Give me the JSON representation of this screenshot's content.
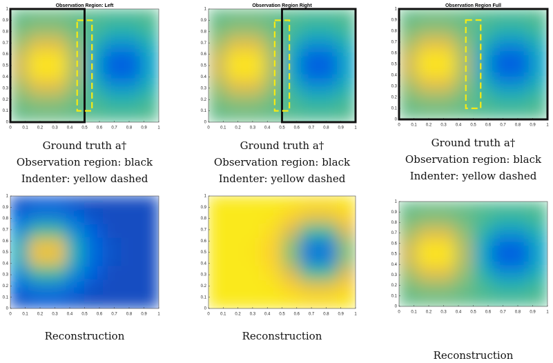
{
  "chart_data": [
    {
      "type": "heatmap",
      "title": "Observation Region: Left",
      "colormap": "parula",
      "caption": [
        "Ground truth a†",
        "Observation region: black",
        "Indenter: yellow dashed"
      ],
      "xlim": [
        0,
        1
      ],
      "ylim": [
        0,
        1
      ],
      "xticks": [
        0,
        0.1,
        0.2,
        0.3,
        0.4,
        0.5,
        0.6,
        0.7,
        0.8,
        0.9,
        1
      ],
      "yticks": [
        0,
        0.1,
        0.2,
        0.3,
        0.4,
        0.5,
        0.6,
        0.7,
        0.8,
        0.9,
        1
      ],
      "observation_region": {
        "x": [
          0,
          0.5
        ],
        "y": [
          0,
          1
        ]
      },
      "indenter": {
        "x": [
          0.45,
          0.55
        ],
        "y": [
          0.1,
          0.9
        ]
      },
      "values": [
        [
          0.56,
          0.57,
          0.57,
          0.56,
          0.54,
          0.53,
          0.53,
          0.54
        ],
        [
          0.59,
          0.63,
          0.63,
          0.58,
          0.52,
          0.46,
          0.46,
          0.51
        ],
        [
          0.65,
          0.78,
          0.78,
          0.63,
          0.46,
          0.3,
          0.3,
          0.43
        ],
        [
          0.73,
          0.93,
          0.93,
          0.68,
          0.39,
          0.13,
          0.13,
          0.36
        ],
        [
          0.73,
          0.93,
          0.93,
          0.68,
          0.39,
          0.13,
          0.13,
          0.36
        ],
        [
          0.65,
          0.78,
          0.78,
          0.63,
          0.46,
          0.3,
          0.3,
          0.43
        ],
        [
          0.59,
          0.63,
          0.63,
          0.58,
          0.52,
          0.46,
          0.46,
          0.51
        ],
        [
          0.56,
          0.57,
          0.57,
          0.56,
          0.54,
          0.53,
          0.53,
          0.54
        ]
      ]
    },
    {
      "type": "heatmap",
      "title": "Observation Region Right",
      "colormap": "parula",
      "caption": [
        "Ground truth a†",
        "Observation region: black",
        "Indenter: yellow dashed"
      ],
      "xlim": [
        0,
        1
      ],
      "ylim": [
        0,
        1
      ],
      "xticks": [
        0,
        0.1,
        0.2,
        0.3,
        0.4,
        0.5,
        0.6,
        0.7,
        0.8,
        0.9,
        1
      ],
      "yticks": [
        0,
        0.1,
        0.2,
        0.3,
        0.4,
        0.5,
        0.6,
        0.7,
        0.8,
        0.9,
        1
      ],
      "observation_region": {
        "x": [
          0.5,
          1
        ],
        "y": [
          0,
          1
        ]
      },
      "indenter": {
        "x": [
          0.45,
          0.55
        ],
        "y": [
          0.1,
          0.9
        ]
      },
      "values": [
        [
          0.56,
          0.57,
          0.57,
          0.56,
          0.54,
          0.53,
          0.53,
          0.54
        ],
        [
          0.59,
          0.63,
          0.63,
          0.58,
          0.52,
          0.46,
          0.46,
          0.51
        ],
        [
          0.65,
          0.78,
          0.78,
          0.63,
          0.46,
          0.3,
          0.3,
          0.43
        ],
        [
          0.73,
          0.93,
          0.93,
          0.68,
          0.39,
          0.13,
          0.13,
          0.36
        ],
        [
          0.73,
          0.93,
          0.93,
          0.68,
          0.39,
          0.13,
          0.13,
          0.36
        ],
        [
          0.65,
          0.78,
          0.78,
          0.63,
          0.46,
          0.3,
          0.3,
          0.43
        ],
        [
          0.59,
          0.63,
          0.63,
          0.58,
          0.52,
          0.46,
          0.46,
          0.51
        ],
        [
          0.56,
          0.57,
          0.57,
          0.56,
          0.54,
          0.53,
          0.53,
          0.54
        ]
      ]
    },
    {
      "type": "heatmap",
      "title": "Observation Region Full",
      "colormap": "parula",
      "caption": [
        "Ground truth a†",
        "Observation region: black",
        "Indenter: yellow dashed"
      ],
      "xlim": [
        0,
        1
      ],
      "ylim": [
        0,
        1
      ],
      "xticks": [
        0,
        0.1,
        0.2,
        0.3,
        0.4,
        0.5,
        0.6,
        0.7,
        0.8,
        0.9,
        1
      ],
      "yticks": [
        0,
        0.1,
        0.2,
        0.3,
        0.4,
        0.5,
        0.6,
        0.7,
        0.8,
        0.9,
        1
      ],
      "observation_region": {
        "x": [
          0,
          1
        ],
        "y": [
          0,
          1
        ]
      },
      "indenter": {
        "x": [
          0.45,
          0.55
        ],
        "y": [
          0.1,
          0.9
        ]
      },
      "values": [
        [
          0.56,
          0.57,
          0.57,
          0.56,
          0.54,
          0.53,
          0.53,
          0.54
        ],
        [
          0.59,
          0.63,
          0.63,
          0.58,
          0.52,
          0.46,
          0.46,
          0.51
        ],
        [
          0.65,
          0.78,
          0.78,
          0.63,
          0.46,
          0.3,
          0.3,
          0.43
        ],
        [
          0.73,
          0.93,
          0.93,
          0.68,
          0.39,
          0.13,
          0.13,
          0.36
        ],
        [
          0.73,
          0.93,
          0.93,
          0.68,
          0.39,
          0.13,
          0.13,
          0.36
        ],
        [
          0.65,
          0.78,
          0.78,
          0.63,
          0.46,
          0.3,
          0.3,
          0.43
        ],
        [
          0.59,
          0.63,
          0.63,
          0.58,
          0.52,
          0.46,
          0.46,
          0.51
        ],
        [
          0.56,
          0.57,
          0.57,
          0.56,
          0.54,
          0.53,
          0.53,
          0.54
        ]
      ]
    },
    {
      "type": "heatmap",
      "colormap": "parula",
      "caption": [
        "Reconstruction"
      ],
      "xlim": [
        0,
        1
      ],
      "ylim": [
        0,
        1
      ],
      "xticks": [
        0,
        0.1,
        0.2,
        0.3,
        0.4,
        0.5,
        0.6,
        0.7,
        0.8,
        0.9,
        1
      ],
      "yticks": [
        0,
        0.1,
        0.2,
        0.3,
        0.4,
        0.5,
        0.6,
        0.7,
        0.8,
        0.9,
        1
      ],
      "values": [
        [
          0.09,
          0.11,
          0.11,
          0.09,
          0.08,
          0.08,
          0.08,
          0.08
        ],
        [
          0.15,
          0.23,
          0.23,
          0.15,
          0.09,
          0.08,
          0.08,
          0.08
        ],
        [
          0.28,
          0.51,
          0.51,
          0.28,
          0.12,
          0.08,
          0.08,
          0.08
        ],
        [
          0.41,
          0.8,
          0.8,
          0.41,
          0.15,
          0.09,
          0.08,
          0.08
        ],
        [
          0.41,
          0.8,
          0.8,
          0.41,
          0.15,
          0.09,
          0.08,
          0.08
        ],
        [
          0.28,
          0.51,
          0.51,
          0.28,
          0.12,
          0.08,
          0.08,
          0.08
        ],
        [
          0.15,
          0.23,
          0.23,
          0.15,
          0.09,
          0.08,
          0.08,
          0.08
        ],
        [
          0.09,
          0.11,
          0.11,
          0.09,
          0.08,
          0.08,
          0.08,
          0.08
        ]
      ]
    },
    {
      "type": "heatmap",
      "colormap": "parula",
      "caption": [
        "Reconstruction"
      ],
      "xlim": [
        0,
        1
      ],
      "ylim": [
        0,
        1
      ],
      "xticks": [
        0,
        0.1,
        0.2,
        0.3,
        0.4,
        0.5,
        0.6,
        0.7,
        0.8,
        0.9,
        1
      ],
      "yticks": [
        0,
        0.1,
        0.2,
        0.3,
        0.4,
        0.5,
        0.6,
        0.7,
        0.8,
        0.9,
        1
      ],
      "values": [
        [
          0.95,
          0.95,
          0.95,
          0.95,
          0.94,
          0.92,
          0.92,
          0.94
        ],
        [
          0.95,
          0.95,
          0.95,
          0.94,
          0.88,
          0.8,
          0.8,
          0.88
        ],
        [
          0.95,
          0.95,
          0.95,
          0.91,
          0.75,
          0.52,
          0.52,
          0.75
        ],
        [
          0.95,
          0.95,
          0.94,
          0.88,
          0.62,
          0.23,
          0.23,
          0.62
        ],
        [
          0.95,
          0.95,
          0.94,
          0.88,
          0.62,
          0.23,
          0.23,
          0.62
        ],
        [
          0.95,
          0.95,
          0.95,
          0.91,
          0.75,
          0.52,
          0.52,
          0.75
        ],
        [
          0.95,
          0.95,
          0.95,
          0.94,
          0.88,
          0.8,
          0.8,
          0.88
        ],
        [
          0.95,
          0.95,
          0.95,
          0.95,
          0.94,
          0.92,
          0.92,
          0.94
        ]
      ]
    },
    {
      "type": "heatmap",
      "colormap": "parula",
      "caption": [
        "Reconstruction"
      ],
      "xlim": [
        0,
        1
      ],
      "ylim": [
        0,
        1
      ],
      "xticks": [
        0,
        0.1,
        0.2,
        0.3,
        0.4,
        0.5,
        0.6,
        0.7,
        0.8,
        0.9,
        1
      ],
      "yticks": [
        0,
        0.1,
        0.2,
        0.3,
        0.4,
        0.5,
        0.6,
        0.7,
        0.8,
        0.9,
        1
      ],
      "values": [
        [
          0.56,
          0.57,
          0.57,
          0.56,
          0.54,
          0.53,
          0.53,
          0.54
        ],
        [
          0.59,
          0.63,
          0.63,
          0.58,
          0.52,
          0.46,
          0.46,
          0.51
        ],
        [
          0.65,
          0.78,
          0.78,
          0.63,
          0.46,
          0.3,
          0.3,
          0.43
        ],
        [
          0.73,
          0.93,
          0.93,
          0.68,
          0.39,
          0.13,
          0.13,
          0.36
        ],
        [
          0.73,
          0.93,
          0.93,
          0.68,
          0.39,
          0.13,
          0.13,
          0.36
        ],
        [
          0.65,
          0.78,
          0.78,
          0.63,
          0.46,
          0.3,
          0.3,
          0.43
        ],
        [
          0.59,
          0.63,
          0.63,
          0.58,
          0.52,
          0.46,
          0.46,
          0.51
        ],
        [
          0.56,
          0.57,
          0.57,
          0.56,
          0.54,
          0.53,
          0.53,
          0.54
        ]
      ]
    }
  ]
}
